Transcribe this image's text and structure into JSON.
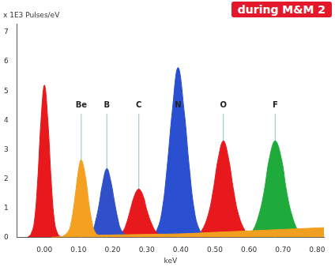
{
  "chart_data": {
    "type": "area",
    "ylabel": "x 1E3 Pulses/eV",
    "xlabel": "keV",
    "annotations": [
      "during M&M 2"
    ],
    "xlim": [
      -0.08,
      0.82
    ],
    "xticks": [
      {
        "value": 0,
        "label": "0.00"
      },
      {
        "value": 0.1,
        "label": "0.10"
      },
      {
        "value": 0.2,
        "label": "0.20"
      },
      {
        "value": 0.3,
        "label": "0.30"
      },
      {
        "value": 0.4,
        "label": "0.40"
      },
      {
        "value": 0.5,
        "label": "0.50"
      },
      {
        "value": 0.6,
        "label": "0.60"
      },
      {
        "value": 0.7,
        "label": "0.70"
      },
      {
        "value": 0.8,
        "label": "0.80"
      }
    ],
    "ylim": [
      0,
      7.3
    ],
    "yticks": [
      0,
      1,
      2,
      3,
      4,
      5,
      6,
      7
    ],
    "grid": false,
    "peak_labels": [
      {
        "label": "Be",
        "x": 0.108
      },
      {
        "label": "B",
        "x": 0.183
      },
      {
        "label": "C",
        "x": 0.277
      },
      {
        "label": "N",
        "x": 0.392
      },
      {
        "label": "O",
        "x": 0.525
      },
      {
        "label": "F",
        "x": 0.677
      }
    ],
    "series": [
      {
        "color": "#f0a020",
        "x": [
          0.02,
          0.1,
          0.2,
          0.3,
          0.4,
          0.5,
          0.6,
          0.7,
          0.82
        ],
        "values": [
          0,
          0.05,
          0.08,
          0.1,
          0.12,
          0.17,
          0.22,
          0.27,
          0.33
        ]
      },
      {
        "color": "#e8191c",
        "x": [
          -0.05,
          -0.04,
          -0.03,
          -0.02,
          -0.01,
          0,
          0.01,
          0.02,
          0.03,
          0.04,
          0.05
        ],
        "values": [
          0,
          0.1,
          0.5,
          1.9,
          4.0,
          5.2,
          4.0,
          1.9,
          0.5,
          0.1,
          0
        ]
      },
      {
        "color": "#f5a020",
        "x": [
          0.05,
          0.07,
          0.08,
          0.09,
          0.1,
          0.108,
          0.12,
          0.13,
          0.14,
          0.15,
          0.17
        ],
        "values": [
          0,
          0.2,
          0.6,
          1.4,
          2.3,
          2.65,
          2.1,
          1.2,
          0.5,
          0.15,
          0
        ]
      },
      {
        "color": "#2f50c8",
        "x": [
          0.12,
          0.14,
          0.15,
          0.16,
          0.17,
          0.183,
          0.195,
          0.205,
          0.215,
          0.225,
          0.245
        ],
        "values": [
          0,
          0.2,
          0.55,
          1.1,
          1.8,
          2.35,
          1.9,
          1.25,
          0.65,
          0.25,
          0
        ]
      },
      {
        "color": "#e8191c",
        "x": [
          0.21,
          0.23,
          0.24,
          0.25,
          0.265,
          0.277,
          0.29,
          0.3,
          0.315,
          0.33,
          0.35
        ],
        "values": [
          0,
          0.2,
          0.45,
          0.85,
          1.45,
          1.65,
          1.4,
          0.95,
          0.45,
          0.15,
          0
        ]
      },
      {
        "color": "#2a4fd0",
        "x": [
          0.31,
          0.33,
          0.345,
          0.36,
          0.375,
          0.392,
          0.41,
          0.425,
          0.44,
          0.455,
          0.475
        ],
        "values": [
          0,
          0.25,
          0.9,
          2.4,
          4.3,
          5.8,
          4.3,
          2.4,
          0.9,
          0.25,
          0
        ]
      },
      {
        "color": "#e8191c",
        "x": [
          0.44,
          0.46,
          0.48,
          0.495,
          0.51,
          0.525,
          0.54,
          0.555,
          0.57,
          0.59,
          0.61
        ],
        "values": [
          0,
          0.2,
          0.75,
          1.6,
          2.7,
          3.3,
          2.7,
          1.6,
          0.75,
          0.2,
          0
        ]
      },
      {
        "color": "#1faa3c",
        "x": [
          0.59,
          0.61,
          0.63,
          0.645,
          0.66,
          0.677,
          0.695,
          0.71,
          0.725,
          0.745,
          0.765
        ],
        "values": [
          0,
          0.2,
          0.8,
          1.6,
          2.7,
          3.3,
          2.7,
          1.6,
          0.8,
          0.2,
          0
        ]
      }
    ]
  }
}
